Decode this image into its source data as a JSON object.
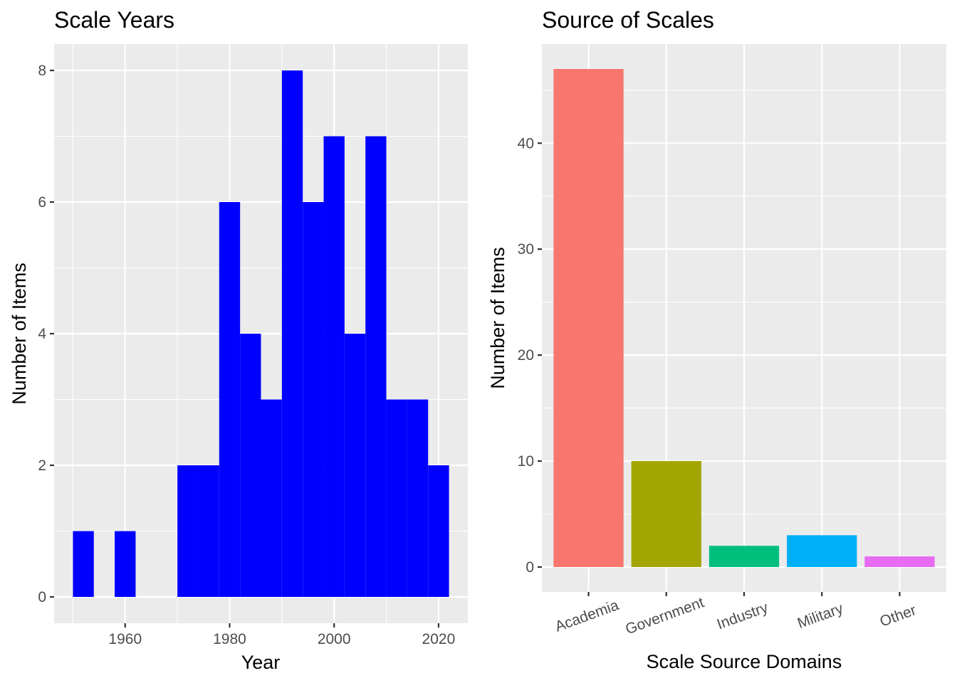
{
  "chart_data": [
    {
      "type": "bar",
      "subtype": "histogram",
      "title": "Scale Years",
      "xlabel": "Year",
      "ylabel": "Number of Items",
      "bin_width": 4,
      "bins": [
        {
          "start": 1950,
          "end": 1954,
          "count": 1
        },
        {
          "start": 1954,
          "end": 1958,
          "count": 0
        },
        {
          "start": 1958,
          "end": 1962,
          "count": 1
        },
        {
          "start": 1962,
          "end": 1966,
          "count": 0
        },
        {
          "start": 1966,
          "end": 1970,
          "count": 0
        },
        {
          "start": 1970,
          "end": 1974,
          "count": 2
        },
        {
          "start": 1974,
          "end": 1978,
          "count": 2
        },
        {
          "start": 1978,
          "end": 1982,
          "count": 6
        },
        {
          "start": 1982,
          "end": 1986,
          "count": 4
        },
        {
          "start": 1986,
          "end": 1990,
          "count": 3
        },
        {
          "start": 1990,
          "end": 1994,
          "count": 8
        },
        {
          "start": 1994,
          "end": 1998,
          "count": 6
        },
        {
          "start": 1998,
          "end": 2002,
          "count": 7
        },
        {
          "start": 2002,
          "end": 2006,
          "count": 4
        },
        {
          "start": 2006,
          "end": 2010,
          "count": 7
        },
        {
          "start": 2010,
          "end": 2014,
          "count": 3
        },
        {
          "start": 2014,
          "end": 2018,
          "count": 3
        },
        {
          "start": 2018,
          "end": 2022,
          "count": 2
        }
      ],
      "xlim": [
        1946.4,
        2025.6
      ],
      "ylim": [
        -0.4,
        8.4
      ],
      "x_ticks": [
        1960,
        1980,
        2000,
        2020
      ],
      "y_ticks": [
        0,
        2,
        4,
        6,
        8
      ],
      "fill_color": "#0000FF",
      "panel_background": "#EBEBEB",
      "grid": true
    },
    {
      "type": "bar",
      "title": "Source of Scales",
      "xlabel": "Scale Source Domains",
      "ylabel": "Number of Items",
      "categories": [
        "Academia",
        "Government",
        "Industry",
        "Military",
        "Other"
      ],
      "values": [
        47,
        10,
        2,
        3,
        1
      ],
      "colors": [
        "#F8766D",
        "#A3A500",
        "#00BF7D",
        "#00B0F6",
        "#E76BF3"
      ],
      "ylim": [
        -2.35,
        49.35
      ],
      "y_ticks": [
        0,
        10,
        20,
        30,
        40
      ],
      "x_tick_rotation_deg": -20,
      "panel_background": "#EBEBEB",
      "grid": true
    }
  ]
}
